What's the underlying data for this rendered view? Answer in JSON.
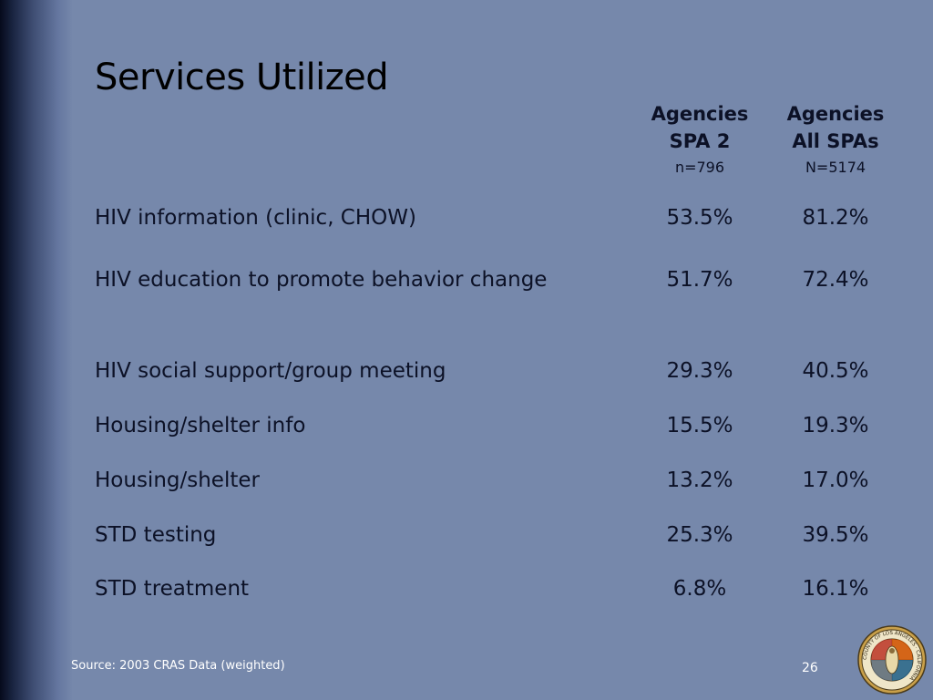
{
  "slide": {
    "title": "Services Utilized",
    "columns": [
      {
        "line1": "Agencies",
        "line2": "SPA 2",
        "n": "n=796"
      },
      {
        "line1": "Agencies",
        "line2": "All SPAs",
        "n": "N=5174"
      }
    ],
    "rows": [
      {
        "label": "HIV information (clinic, CHOW)",
        "spa2": "53.5%",
        "all": "81.2%"
      },
      {
        "label": "HIV education to promote behavior change",
        "spa2": "51.7%",
        "all": "72.4%"
      },
      {
        "label": "HIV social support/group meeting",
        "spa2": "29.3%",
        "all": "40.5%"
      },
      {
        "label": "Housing/shelter info",
        "spa2": "15.5%",
        "all": "19.3%"
      },
      {
        "label": "Housing/shelter",
        "spa2": "13.2%",
        "all": "17.0%"
      },
      {
        "label": "STD testing",
        "spa2": "25.3%",
        "all": "39.5%"
      },
      {
        "label": "STD treatment",
        "spa2": "6.8%",
        "all": "16.1%"
      }
    ],
    "source": "Source: 2003 CRAS Data (weighted)",
    "page_number": "26"
  },
  "seal": {
    "name": "county-seal-icon",
    "text": "COUNTY OF LOS ANGELES · CALIFORNIA"
  },
  "colors": {
    "background": "#7688ab",
    "text": "#0c1126",
    "footer_text": "#ffffff"
  }
}
